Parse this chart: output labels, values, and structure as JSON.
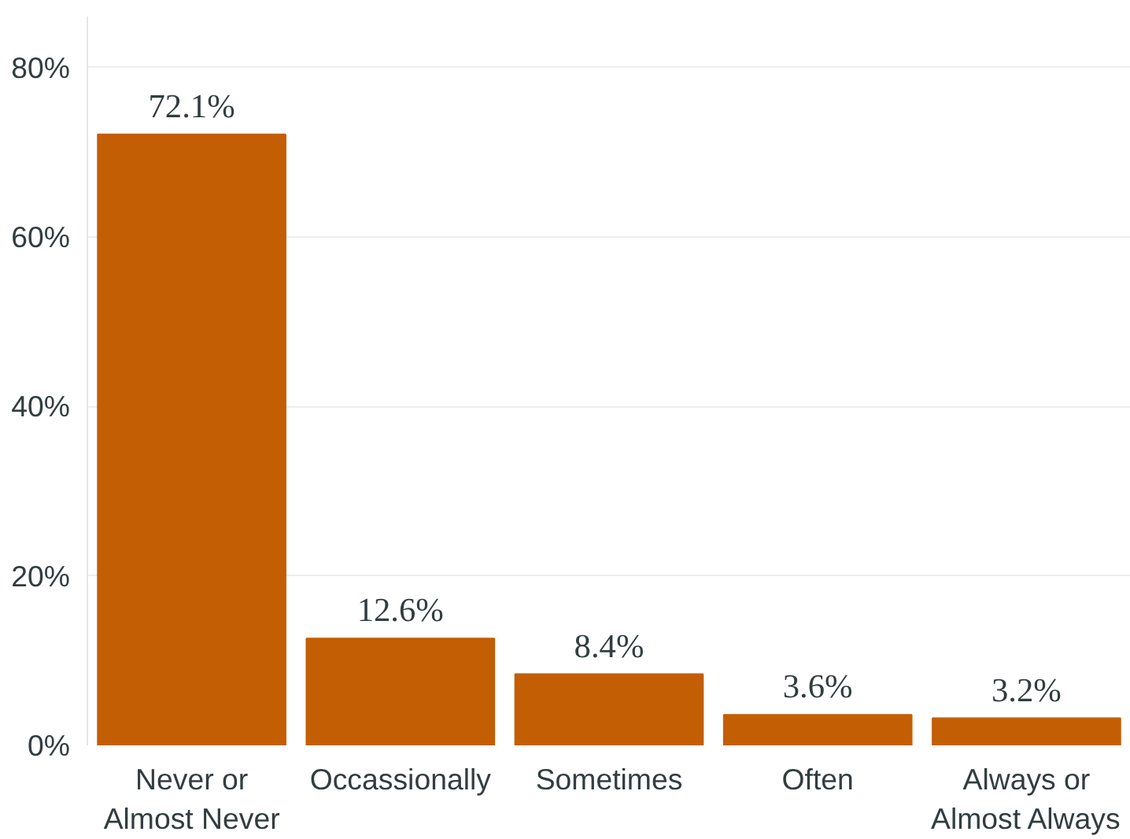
{
  "chart_data": {
    "type": "bar",
    "categories": [
      "Never or\nAlmost Never",
      "Occassionally",
      "Sometimes",
      "Often",
      "Always or\nAlmost Always"
    ],
    "values": [
      72.1,
      12.6,
      8.4,
      3.6,
      3.2
    ],
    "value_labels": [
      "72.1%",
      "12.6%",
      "8.4%",
      "3.6%",
      "3.2%"
    ],
    "color": "#c45e04",
    "ylim": [
      0,
      86
    ],
    "yticks": [
      {
        "value": 0,
        "label": "0%"
      },
      {
        "value": 20,
        "label": "20%"
      },
      {
        "value": 40,
        "label": "40%"
      },
      {
        "value": 60,
        "label": "60%"
      },
      {
        "value": 80,
        "label": "80%"
      }
    ],
    "grid": "y"
  }
}
